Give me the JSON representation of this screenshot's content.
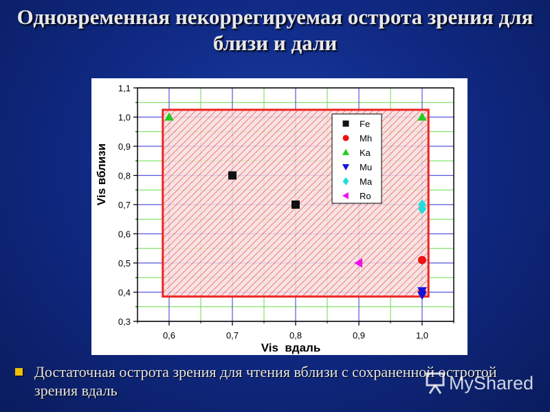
{
  "slide": {
    "title": "Одновременная некоррегируемая острота зрения для близи и дали",
    "bullet": "Достаточная острота зрения для чтения вблизи  с сохраненной остротой зрения вдаль",
    "background_color": "#102a86",
    "bullet_color": "#f0c000"
  },
  "watermark": {
    "text": "MyShared"
  },
  "chart_data": {
    "type": "scatter",
    "xlabel": "Vis  вдаль",
    "ylabel": "Vis вблизи",
    "xlim": [
      0.55,
      1.05
    ],
    "ylim": [
      0.3,
      1.1
    ],
    "xticks": [
      0.6,
      0.7,
      0.8,
      0.9,
      1.0
    ],
    "xtick_labels": [
      "0,6",
      "0,7",
      "0,8",
      "0,9",
      "1,0"
    ],
    "yticks": [
      0.3,
      0.4,
      0.5,
      0.6,
      0.7,
      0.8,
      0.9,
      1.0,
      1.1
    ],
    "ytick_labels": [
      "0,3",
      "0,4",
      "0,5",
      "0,6",
      "0,7",
      "0,8",
      "0,9",
      "1,0",
      "1,1"
    ],
    "grid": true,
    "legend_position": "top-right",
    "region": {
      "x_range": [
        0.59,
        1.01
      ],
      "y_range": [
        0.385,
        1.025
      ],
      "color": "#ee2222"
    },
    "series": [
      {
        "name": "Fe",
        "marker": "square",
        "color": "#111111",
        "points": [
          [
            0.7,
            0.8
          ],
          [
            0.8,
            0.7
          ]
        ]
      },
      {
        "name": "Mh",
        "marker": "circle",
        "color": "#ee1111",
        "points": [
          [
            1.0,
            0.51
          ],
          [
            1.0,
            0.4
          ]
        ]
      },
      {
        "name": "Ka",
        "marker": "triangle-up",
        "color": "#22cc22",
        "points": [
          [
            0.6,
            1.0
          ],
          [
            1.0,
            1.0
          ]
        ]
      },
      {
        "name": "Mu",
        "marker": "triangle-down",
        "color": "#1111dd",
        "points": [
          [
            1.0,
            0.405
          ],
          [
            1.0,
            0.39
          ]
        ]
      },
      {
        "name": "Ma",
        "marker": "diamond",
        "color": "#22dddd",
        "points": [
          [
            1.0,
            0.685
          ],
          [
            1.0,
            0.7
          ]
        ]
      },
      {
        "name": "Ro",
        "marker": "triangle-left",
        "color": "#ee11ee",
        "points": [
          [
            0.9,
            0.5
          ]
        ]
      }
    ]
  }
}
